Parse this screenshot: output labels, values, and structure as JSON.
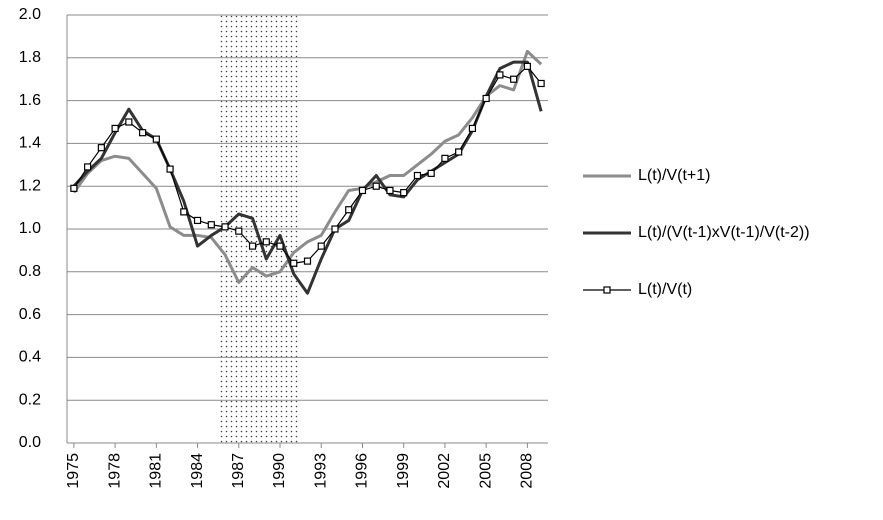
{
  "chart_data": {
    "type": "line",
    "x": [
      1975,
      1976,
      1977,
      1978,
      1979,
      1980,
      1981,
      1982,
      1983,
      1984,
      1985,
      1986,
      1987,
      1988,
      1989,
      1990,
      1991,
      1992,
      1993,
      1994,
      1995,
      1996,
      1997,
      1998,
      1999,
      2000,
      2001,
      2002,
      2003,
      2004,
      2005,
      2006,
      2007,
      2008,
      2009
    ],
    "xlim": [
      1974.5,
      2009.5
    ],
    "xticks": [
      1975,
      1978,
      1981,
      1984,
      1987,
      1990,
      1993,
      1996,
      1999,
      2002,
      2005,
      2008
    ],
    "ylim": [
      0,
      2
    ],
    "yticks": [
      {
        "value": 0,
        "label": "0.0"
      },
      {
        "value": 0.2,
        "label": "0.2"
      },
      {
        "value": 0.4,
        "label": "0.4"
      },
      {
        "value": 0.6,
        "label": "0.6"
      },
      {
        "value": 0.8,
        "label": "0.8"
      },
      {
        "value": 1,
        "label": "1.0"
      },
      {
        "value": 1.2,
        "label": "1.2"
      },
      {
        "value": 1.4,
        "label": "1.4"
      },
      {
        "value": 1.6,
        "label": "1.6"
      },
      {
        "value": 1.8,
        "label": "1.8"
      },
      {
        "value": 2,
        "label": "2.0"
      }
    ],
    "grid": true,
    "legend": "right",
    "shaded_span": [
      1985.5,
      1991.5
    ],
    "series": [
      {
        "name": "L(t)/V(t+1)",
        "color": "#8c8c8c",
        "width": 3,
        "values": [
          1.17,
          1.26,
          1.32,
          1.34,
          1.33,
          1.26,
          1.19,
          1.01,
          0.97,
          0.97,
          0.96,
          0.88,
          0.75,
          0.82,
          0.78,
          0.8,
          0.89,
          0.94,
          0.97,
          1.08,
          1.18,
          1.19,
          1.22,
          1.25,
          1.25,
          1.3,
          1.35,
          1.41,
          1.44,
          1.52,
          1.62,
          1.67,
          1.65,
          1.83,
          1.77
        ]
      },
      {
        "name": "L(t)/(V(t-1)xV(t-1)/V(t-2))",
        "color": "#333333",
        "width": 3,
        "values": [
          1.2,
          1.27,
          1.33,
          1.45,
          1.56,
          1.46,
          1.42,
          1.28,
          1.13,
          0.92,
          0.97,
          1.01,
          1.07,
          1.05,
          0.86,
          0.97,
          0.79,
          0.7,
          0.86,
          1.0,
          1.04,
          1.18,
          1.25,
          1.16,
          1.15,
          1.23,
          1.27,
          1.31,
          1.35,
          1.46,
          1.62,
          1.75,
          1.78,
          1.78,
          1.55
        ]
      },
      {
        "name": "L(t)/V(t)",
        "color": "#000000",
        "width": 1.2,
        "marker": "square",
        "values": [
          1.19,
          1.29,
          1.38,
          1.47,
          1.5,
          1.45,
          1.42,
          1.28,
          1.08,
          1.04,
          1.02,
          1.01,
          0.99,
          0.92,
          0.94,
          0.92,
          0.84,
          0.85,
          0.92,
          1.0,
          1.09,
          1.18,
          1.2,
          1.18,
          1.17,
          1.25,
          1.26,
          1.33,
          1.36,
          1.47,
          1.61,
          1.72,
          1.7,
          1.76,
          1.68
        ]
      }
    ]
  }
}
